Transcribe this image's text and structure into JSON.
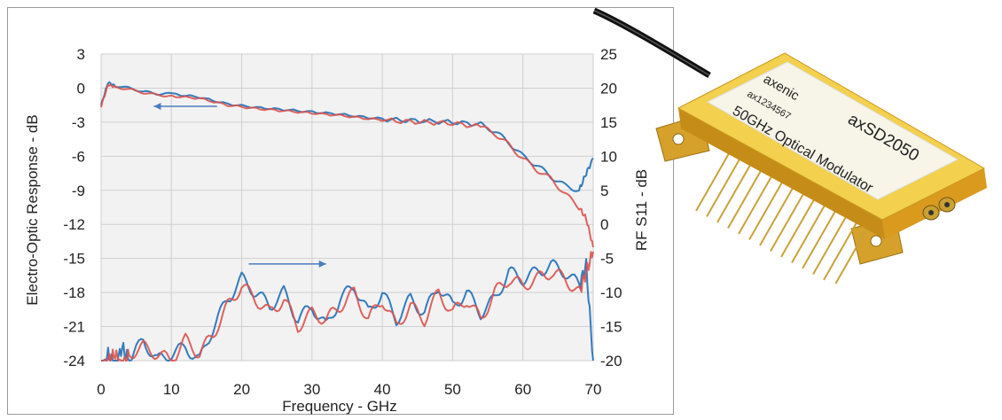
{
  "chart_data": {
    "type": "line",
    "xlabel": "Frequency - GHz",
    "ylabel_left": "Electro-Optic Response - dB",
    "ylabel_right": "RF S11 - dB",
    "xlim": [
      0,
      70
    ],
    "ylim_left": [
      -24,
      3
    ],
    "ylim_right": [
      -20,
      25
    ],
    "x_ticks": [
      "0",
      "10",
      "20",
      "30",
      "40",
      "50",
      "60",
      "70"
    ],
    "y_left_ticks": [
      "3",
      "0",
      "-3",
      "-6",
      "-9",
      "-12",
      "-15",
      "-18",
      "-21",
      "-24"
    ],
    "y_right_ticks": [
      "25",
      "20",
      "15",
      "10",
      "5",
      "0",
      "-5",
      "-10",
      "-15",
      "-20"
    ],
    "grid": true,
    "arrows": [
      {
        "direction": "left",
        "axis": "left"
      },
      {
        "direction": "right",
        "axis": "right"
      }
    ],
    "colors": {
      "blue": "#1f6fb6",
      "red": "#d9534f",
      "dark": "#8b1a3a"
    },
    "series": [
      {
        "axis": "left",
        "color": "#1f6fb6",
        "x": [
          0,
          1,
          2,
          4,
          6,
          8,
          10,
          14,
          18,
          22,
          26,
          30,
          34,
          38,
          42,
          46,
          50,
          54,
          56,
          58,
          60,
          62,
          64,
          66,
          68,
          69,
          70
        ],
        "y": [
          -1.5,
          0.5,
          0.2,
          0,
          -0.3,
          -0.5,
          -0.5,
          -0.8,
          -1.4,
          -1.7,
          -1.9,
          -2.1,
          -2.3,
          -2.6,
          -2.8,
          -2.9,
          -3.0,
          -3.2,
          -3.8,
          -4.8,
          -6.0,
          -6.8,
          -7.8,
          -8.6,
          -9.0,
          -7.5,
          -6.2
        ]
      },
      {
        "axis": "left",
        "color": "#d9534f",
        "x": [
          0,
          1,
          2,
          4,
          6,
          8,
          10,
          14,
          18,
          22,
          26,
          30,
          34,
          38,
          42,
          46,
          50,
          54,
          56,
          58,
          60,
          62,
          64,
          66,
          68,
          69,
          70
        ],
        "y": [
          -1.6,
          0.3,
          0.1,
          -0.1,
          -0.4,
          -0.6,
          -0.7,
          -0.9,
          -1.5,
          -1.8,
          -2.0,
          -2.2,
          -2.4,
          -2.7,
          -2.9,
          -3.0,
          -3.1,
          -3.4,
          -4.0,
          -5.0,
          -6.2,
          -7.2,
          -8.0,
          -9.3,
          -10.5,
          -11.5,
          -14.0
        ]
      },
      {
        "axis": "right",
        "color": "#1f6fb6",
        "x": [
          0,
          1,
          2,
          3,
          4,
          6,
          8,
          10,
          12,
          14,
          16,
          18,
          20,
          22,
          24,
          26,
          28,
          30,
          32,
          34,
          36,
          38,
          40,
          42,
          44,
          46,
          48,
          50,
          52,
          54,
          56,
          58,
          60,
          62,
          64,
          66,
          68,
          69,
          70
        ],
        "y": [
          -22,
          -19,
          -21,
          -18,
          -20,
          -17,
          -20,
          -19,
          -18,
          -20,
          -15,
          -11,
          -8,
          -10,
          -12,
          -10,
          -14,
          -12,
          -15,
          -11,
          -9,
          -13,
          -10,
          -14,
          -11,
          -13,
          -9,
          -12,
          -10,
          -13,
          -11,
          -7,
          -8,
          -7,
          -6,
          -7,
          -9,
          -6,
          -20
        ]
      },
      {
        "axis": "right",
        "color": "#d9534f",
        "x": [
          0,
          1,
          2,
          3,
          4,
          6,
          8,
          10,
          12,
          14,
          16,
          18,
          20,
          22,
          24,
          26,
          28,
          30,
          32,
          34,
          36,
          38,
          40,
          42,
          44,
          46,
          48,
          50,
          52,
          54,
          56,
          58,
          60,
          62,
          64,
          66,
          68,
          69,
          70
        ],
        "y": [
          -21,
          -20,
          -19,
          -21,
          -19,
          -18,
          -19,
          -20,
          -17,
          -19,
          -16,
          -12,
          -9,
          -11,
          -13,
          -11,
          -15,
          -13,
          -14,
          -12,
          -10,
          -14,
          -11,
          -15,
          -12,
          -14,
          -10,
          -13,
          -11,
          -14,
          -10,
          -8,
          -9,
          -8,
          -7,
          -8,
          -10,
          -7,
          -4
        ]
      }
    ]
  },
  "device": {
    "label_brand": "axenic",
    "label_serial": "ax1234567",
    "label_model": "axSD2050",
    "label_desc": "50GHz Optical Modulator"
  }
}
